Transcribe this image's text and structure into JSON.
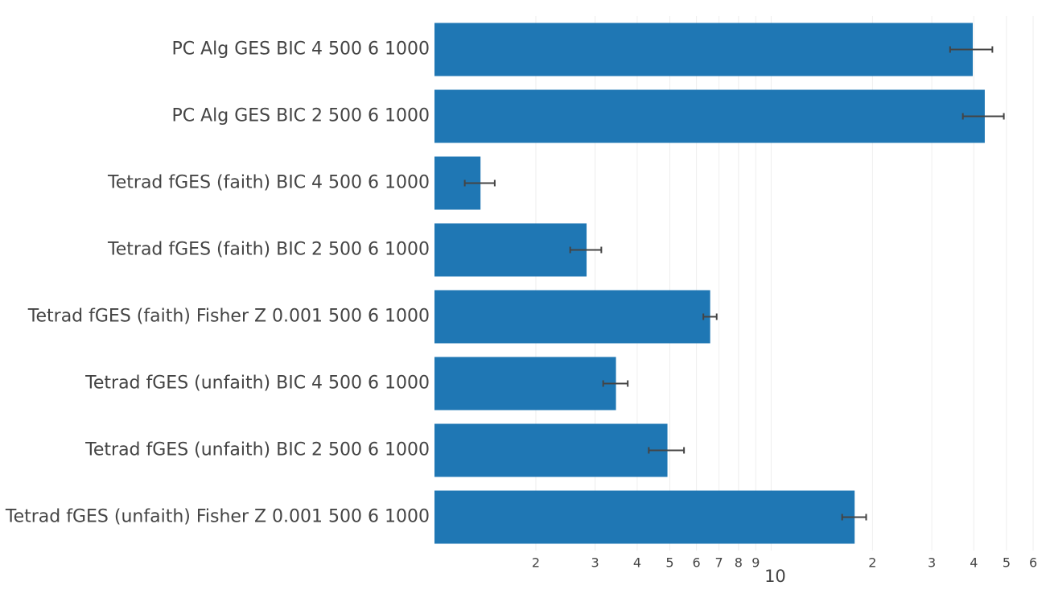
{
  "chart_data": {
    "type": "bar",
    "orientation": "horizontal",
    "log_x": true,
    "grid": true,
    "color": "#1f77b4",
    "error_color": "#444444",
    "categories": [
      "PC Alg GES BIC 4 500 6 1000",
      "PC Alg GES BIC 2 500 6 1000",
      "Tetrad fGES (faith) BIC 4 500 6 1000",
      "Tetrad fGES (faith) BIC 2 500 6 1000",
      "Tetrad fGES (faith) Fisher Z 0.001 500 6 1000",
      "Tetrad fGES (unfaith) BIC 4 500 6 1000",
      "Tetrad fGES (unfaith) BIC 2 500 6 1000",
      "Tetrad fGES (unfaith) Fisher Z 0.001 500 6 1000"
    ],
    "values": [
      39.7,
      43.1,
      1.37,
      2.83,
      6.59,
      3.46,
      4.92,
      17.7
    ],
    "errors": [
      5.7,
      6.0,
      0.14,
      0.3,
      0.3,
      0.29,
      0.59,
      1.45
    ],
    "xlim": [
      1,
      62
    ],
    "xticks": [
      2,
      3,
      4,
      5,
      6,
      7,
      8,
      9,
      10,
      {
        "value": 20,
        "label": "2"
      },
      {
        "value": 30,
        "label": "3"
      },
      {
        "value": 40,
        "label": "4"
      },
      {
        "value": 50,
        "label": "5"
      },
      {
        "value": 60,
        "label": "6"
      }
    ]
  }
}
